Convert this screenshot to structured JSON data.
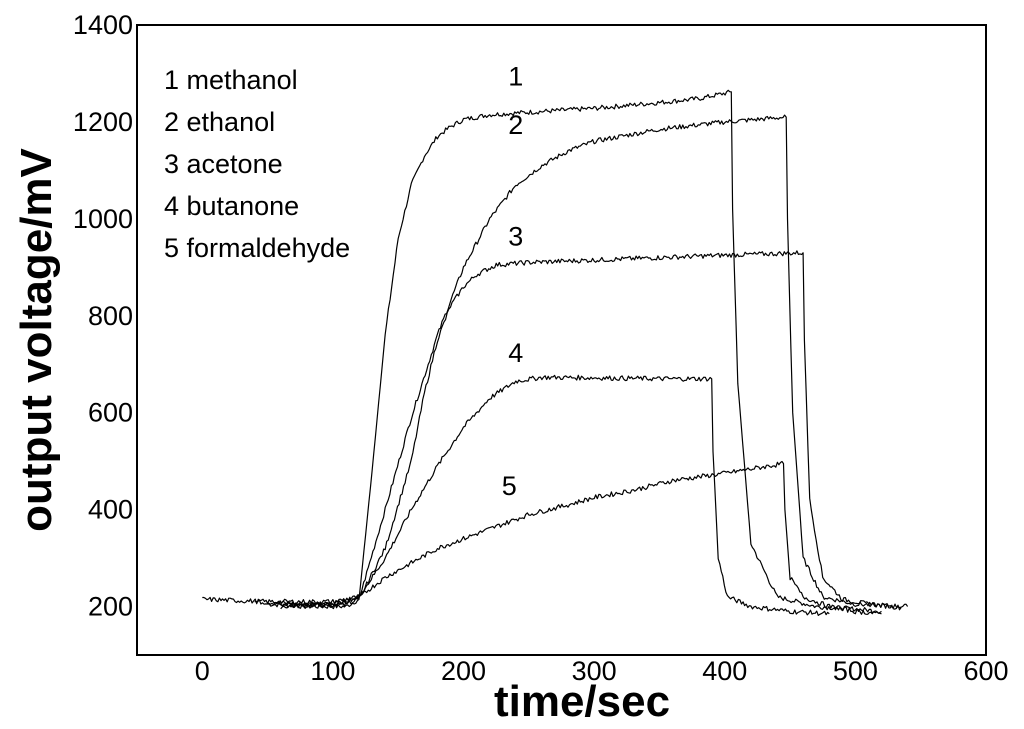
{
  "chart_data": {
    "type": "line",
    "xlabel": "time/sec",
    "ylabel": "output voltage/mV",
    "xlim": [
      -50,
      600
    ],
    "ylim": [
      100,
      1400
    ],
    "xticks": [
      0,
      100,
      200,
      300,
      400,
      500,
      600
    ],
    "yticks": [
      200,
      400,
      600,
      800,
      1000,
      1200,
      1400
    ],
    "grid": false,
    "legend_position": "top-left",
    "legend": [
      "1 methanol",
      "2 ethanol",
      "3 acetone",
      "4 butanone",
      "5 formaldehyde"
    ],
    "series": [
      {
        "name": "1 methanol",
        "label": "1",
        "x": [
          50,
          80,
          110,
          120,
          130,
          140,
          150,
          160,
          170,
          180,
          190,
          200,
          220,
          250,
          300,
          350,
          380,
          405,
          406,
          410,
          420,
          440,
          470,
          500,
          520
        ],
        "y": [
          205,
          200,
          200,
          215,
          480,
          760,
          960,
          1070,
          1130,
          1170,
          1190,
          1205,
          1215,
          1220,
          1228,
          1240,
          1248,
          1262,
          1020,
          660,
          330,
          220,
          200,
          195,
          190
        ]
      },
      {
        "name": "2 ethanol",
        "label": "2",
        "x": [
          40,
          80,
          110,
          120,
          140,
          160,
          180,
          200,
          220,
          240,
          260,
          280,
          300,
          350,
          400,
          447,
          448,
          452,
          460,
          475,
          500,
          540
        ],
        "y": [
          210,
          205,
          205,
          215,
          400,
          590,
          760,
          900,
          1000,
          1070,
          1110,
          1140,
          1160,
          1185,
          1200,
          1210,
          1000,
          600,
          300,
          220,
          205,
          200
        ]
      },
      {
        "name": "3 acetone",
        "label": "3",
        "x": [
          60,
          100,
          120,
          140,
          160,
          170,
          180,
          190,
          200,
          210,
          225,
          250,
          300,
          350,
          400,
          460,
          461,
          465,
          475,
          490,
          510,
          535
        ],
        "y": [
          200,
          205,
          215,
          320,
          500,
          640,
          750,
          820,
          860,
          885,
          905,
          910,
          915,
          920,
          925,
          930,
          750,
          420,
          260,
          215,
          205,
          198
        ]
      },
      {
        "name": "4 butanone",
        "label": "4",
        "x": [
          60,
          100,
          120,
          140,
          160,
          180,
          200,
          220,
          240,
          260,
          300,
          350,
          390,
          391,
          395,
          402,
          420,
          450,
          480
        ],
        "y": [
          205,
          205,
          220,
          300,
          400,
          490,
          570,
          630,
          665,
          673,
          672,
          670,
          670,
          520,
          300,
          220,
          200,
          190,
          185
        ]
      },
      {
        "name": "5 formaldehyde",
        "label": "5",
        "x": [
          0,
          50,
          100,
          120,
          140,
          160,
          180,
          200,
          220,
          250,
          280,
          300,
          330,
          360,
          400,
          445,
          446,
          450,
          460,
          480,
          500,
          520
        ],
        "y": [
          215,
          210,
          210,
          220,
          260,
          290,
          320,
          340,
          360,
          390,
          410,
          425,
          440,
          460,
          475,
          495,
          400,
          260,
          220,
          200,
          190,
          185
        ]
      }
    ]
  }
}
